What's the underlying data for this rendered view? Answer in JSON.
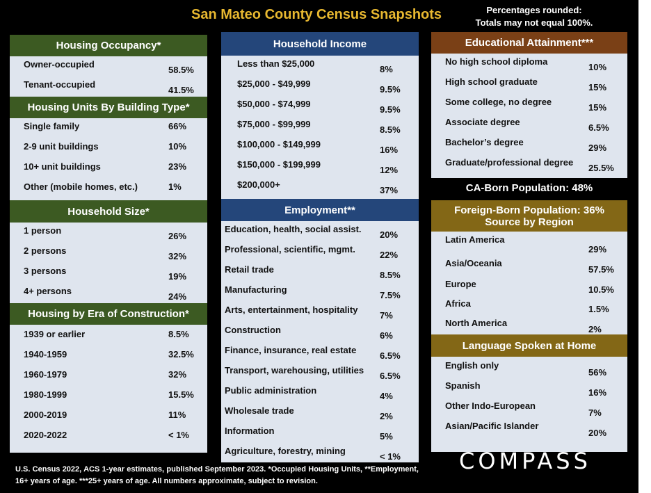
{
  "title": "San Mateo County Census Snapshots",
  "note": [
    "Percentages rounded:",
    "Totals may not equal 100%."
  ],
  "left": {
    "occupancy": {
      "title": "Housing Occupancy*",
      "rows": [
        {
          "label": "Owner-occupied",
          "value": "58.5%"
        },
        {
          "label": "Tenant-occupied",
          "value": "41.5%"
        }
      ]
    },
    "building_type": {
      "title": "Housing Units By Building Type*",
      "rows": [
        {
          "label": "Single family",
          "value": "66%"
        },
        {
          "label": "2-9 unit buildings",
          "value": "10%"
        },
        {
          "label": "10+ unit buildings",
          "value": "23%"
        },
        {
          "label": "Other (mobile homes, etc.)",
          "value": "1%"
        }
      ]
    },
    "household_size": {
      "title": "Household Size*",
      "rows": [
        {
          "label": "1 person",
          "value": "26%"
        },
        {
          "label": "2 persons",
          "value": "32%"
        },
        {
          "label": "3 persons",
          "value": "19%"
        },
        {
          "label": "4+ persons",
          "value": "24%"
        }
      ]
    },
    "era": {
      "title": "Housing by Era of Construction*",
      "rows": [
        {
          "label": "1939 or earlier",
          "value": "8.5%"
        },
        {
          "label": "1940-1959",
          "value": "32.5%"
        },
        {
          "label": "1960-1979",
          "value": "32%"
        },
        {
          "label": "1980-1999",
          "value": "15.5%"
        },
        {
          "label": "2000-2019",
          "value": "11%"
        },
        {
          "label": "2020-2022",
          "value": "< 1%"
        }
      ]
    }
  },
  "middle": {
    "income": {
      "title": "Household Income",
      "rows": [
        {
          "label": "Less than $25,000",
          "value": "8%"
        },
        {
          "label": "$25,000 - $49,999",
          "value": "9.5%"
        },
        {
          "label": "$50,000 - $74,999",
          "value": "9.5%"
        },
        {
          "label": "$75,000 - $99,999",
          "value": "8.5%"
        },
        {
          "label": "$100,000 - $149,999",
          "value": "16%"
        },
        {
          "label": "$150,000 - $199,999",
          "value": "12%"
        },
        {
          "label": "$200,000+",
          "value": "37%"
        }
      ]
    },
    "employment": {
      "title": "Employment**",
      "rows": [
        {
          "label": "Education, health, social assist.",
          "value": "20%"
        },
        {
          "label": "Professional, scientific, mgmt.",
          "value": "22%"
        },
        {
          "label": "Retail trade",
          "value": "8.5%"
        },
        {
          "label": "Manufacturing",
          "value": "7.5%"
        },
        {
          "label": "Arts, entertainment, hospitality",
          "value": "7%"
        },
        {
          "label": "Construction",
          "value": "6%"
        },
        {
          "label": "Finance, insurance, real estate",
          "value": "6.5%"
        },
        {
          "label": "Transport, warehousing, utilities",
          "value": "6.5%"
        },
        {
          "label": "Public administration",
          "value": "4%"
        },
        {
          "label": "Wholesale trade",
          "value": "2%"
        },
        {
          "label": "Information",
          "value": "5%"
        },
        {
          "label": "Agriculture, forestry, mining",
          "value": "< 1%"
        }
      ]
    }
  },
  "right": {
    "education": {
      "title": "Educational Attainment***",
      "rows": [
        {
          "label": "No high school diploma",
          "value": "10%"
        },
        {
          "label": "High school graduate",
          "value": "15%"
        },
        {
          "label": "Some college, no degree",
          "value": "15%"
        },
        {
          "label": "Associate degree",
          "value": "6.5%"
        },
        {
          "label": "Bachelor’s degree",
          "value": "29%"
        },
        {
          "label": "Graduate/professional degree",
          "value": "25.5%"
        }
      ]
    },
    "ca_born": "CA-Born Population:  48%",
    "foreign_born": {
      "title_line1": "Foreign-Born Population:  36%",
      "title_line2": "Source by Region",
      "rows": [
        {
          "label": "Latin America",
          "value": "29%"
        },
        {
          "label": "Asia/Oceania",
          "value": "57.5%"
        },
        {
          "label": "Europe",
          "value": "10.5%"
        },
        {
          "label": "Africa",
          "value": "1.5%"
        },
        {
          "label": "North America",
          "value": "2%"
        }
      ]
    },
    "language": {
      "title": "Language Spoken at Home",
      "rows": [
        {
          "label": "English only",
          "value": "56%"
        },
        {
          "label": "Spanish",
          "value": "16%"
        },
        {
          "label": "Other Indo-European",
          "value": "7%"
        },
        {
          "label": "Asian/Pacific Islander",
          "value": "20%"
        }
      ]
    }
  },
  "footer": "U.S. Census 2022, ACS 1-year estimates, published September 2023. *Occupied Housing Units, **Employment, 16+ years of age. ***25+ years of age. All numbers approximate, subject to revision.",
  "logo": "COMPASS"
}
